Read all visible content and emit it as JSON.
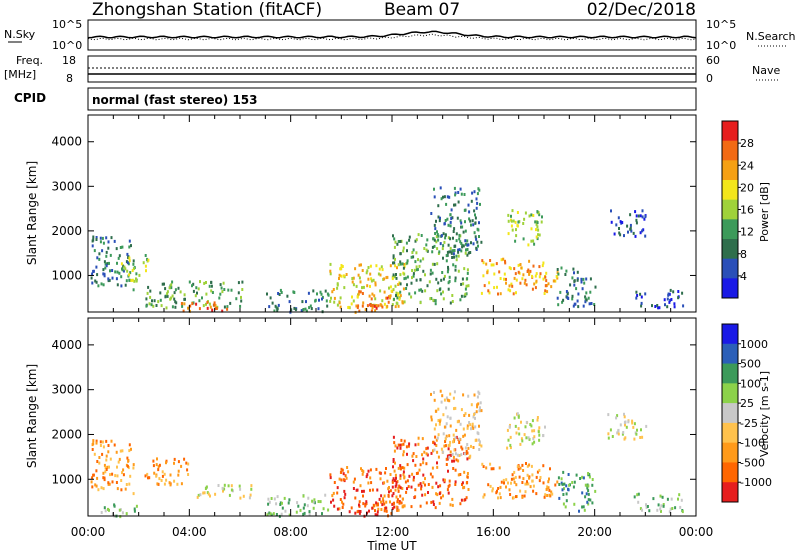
{
  "header": {
    "station": "Zhongshan Station (fitACF)",
    "beam": "Beam 07",
    "date": "02/Dec/2018"
  },
  "aux_panel": {
    "nsky_label": "N.Sky",
    "nsearch_label": "N.Search",
    "noise_tick_top": "10^5",
    "noise_tick_bottom": "10^0",
    "freq_label": "Freq.",
    "freq_unit": "[MHz]",
    "freq_tick_top": "18",
    "freq_tick_bottom": "8",
    "nave_label": "Nave",
    "nave_tick_top": "60",
    "nave_tick_bottom": "0",
    "cpid_label": "CPID",
    "cpid_text": "normal (fast stereo) 153"
  },
  "colors": {
    "power_scale": [
      "#1a1ae6",
      "#2a4fb8",
      "#2f6e4c",
      "#3c9a5a",
      "#9fd23a",
      "#f3e61a",
      "#f5a014",
      "#f26a14",
      "#e61e1e"
    ],
    "velocity_scale": [
      "#e61e1e",
      "#ff6600",
      "#ff9a1a",
      "#ffc24d",
      "#c8c8c8",
      "#8cd24a",
      "#3c9a5a",
      "#2b5fb8",
      "#1a1ae6"
    ]
  },
  "chart_data": [
    {
      "type": "heatmap",
      "name": "power",
      "xlabel": "",
      "ylabel": "Slant Range [km]",
      "xlim": [
        "00:00",
        "24:00"
      ],
      "ylim": [
        180,
        4600
      ],
      "y_ticks": [
        "1000",
        "2000",
        "3000",
        "4000"
      ],
      "colorbar_label": "Power [dB]",
      "colorbar_ticks": [
        "4",
        "8",
        "12",
        "16",
        "20",
        "24",
        "28"
      ],
      "regions": [
        {
          "t0": 0.1,
          "t1": 1.8,
          "r0": 700,
          "r1": 1900,
          "level": 2
        },
        {
          "t0": 1.2,
          "t1": 2.4,
          "r0": 900,
          "r1": 1500,
          "level": 4
        },
        {
          "t0": 2.2,
          "t1": 6.2,
          "r0": 300,
          "r1": 900,
          "level": 3
        },
        {
          "t0": 3.5,
          "t1": 5.5,
          "r0": 200,
          "r1": 450,
          "level": 7
        },
        {
          "t0": 7.0,
          "t1": 9.5,
          "r0": 200,
          "r1": 700,
          "level": 2
        },
        {
          "t0": 9.5,
          "t1": 12.5,
          "r0": 300,
          "r1": 1300,
          "level": 5
        },
        {
          "t0": 10.5,
          "t1": 12.0,
          "r0": 200,
          "r1": 700,
          "level": 7
        },
        {
          "t0": 12.0,
          "t1": 15.0,
          "r0": 400,
          "r1": 2000,
          "level": 3
        },
        {
          "t0": 13.5,
          "t1": 15.5,
          "r0": 1500,
          "r1": 3000,
          "level": 2
        },
        {
          "t0": 15.5,
          "t1": 18.5,
          "r0": 600,
          "r1": 1400,
          "level": 6
        },
        {
          "t0": 16.5,
          "t1": 18.0,
          "r0": 1700,
          "r1": 2500,
          "level": 4
        },
        {
          "t0": 18.5,
          "t1": 20.0,
          "r0": 300,
          "r1": 1200,
          "level": 2
        },
        {
          "t0": 20.5,
          "t1": 22.0,
          "r0": 1900,
          "r1": 2500,
          "level": 1
        },
        {
          "t0": 21.5,
          "t1": 23.5,
          "r0": 300,
          "r1": 700,
          "level": 1
        }
      ]
    },
    {
      "type": "heatmap",
      "name": "velocity",
      "xlabel": "Time UT",
      "ylabel": "Slant Range [km]",
      "xlim": [
        "00:00",
        "24:00"
      ],
      "ylim": [
        180,
        4600
      ],
      "x_ticks": [
        "00:00",
        "04:00",
        "08:00",
        "12:00",
        "16:00",
        "20:00",
        "00:00"
      ],
      "y_ticks": [
        "1000",
        "2000",
        "3000",
        "4000"
      ],
      "colorbar_label": "Velocity [m s-1]",
      "colorbar_ticks": [
        "-1000",
        "-500",
        "-100",
        "-25",
        "25",
        "100",
        "500",
        "1000"
      ],
      "regions": [
        {
          "t0": 0.1,
          "t1": 1.8,
          "r0": 700,
          "r1": 1900,
          "level": 2
        },
        {
          "t0": 0.5,
          "t1": 2.0,
          "r0": 200,
          "r1": 500,
          "level": 5
        },
        {
          "t0": 2.2,
          "t1": 4.0,
          "r0": 900,
          "r1": 1500,
          "level": 2
        },
        {
          "t0": 4.0,
          "t1": 6.5,
          "r0": 600,
          "r1": 900,
          "level": 4
        },
        {
          "t0": 7.0,
          "t1": 9.5,
          "r0": 200,
          "r1": 700,
          "level": 5
        },
        {
          "t0": 9.5,
          "t1": 12.5,
          "r0": 300,
          "r1": 1300,
          "level": 1
        },
        {
          "t0": 10.5,
          "t1": 12.0,
          "r0": 200,
          "r1": 700,
          "level": 0
        },
        {
          "t0": 12.0,
          "t1": 15.0,
          "r0": 400,
          "r1": 2000,
          "level": 1
        },
        {
          "t0": 13.5,
          "t1": 15.5,
          "r0": 1500,
          "r1": 3000,
          "level": 3
        },
        {
          "t0": 15.5,
          "t1": 18.5,
          "r0": 600,
          "r1": 1400,
          "level": 2
        },
        {
          "t0": 16.5,
          "t1": 18.0,
          "r0": 1700,
          "r1": 2500,
          "level": 4
        },
        {
          "t0": 18.5,
          "t1": 20.0,
          "r0": 300,
          "r1": 1200,
          "level": 6
        },
        {
          "t0": 20.5,
          "t1": 22.0,
          "r0": 1900,
          "r1": 2500,
          "level": 4
        },
        {
          "t0": 21.5,
          "t1": 23.5,
          "r0": 300,
          "r1": 700,
          "level": 5
        }
      ]
    }
  ]
}
